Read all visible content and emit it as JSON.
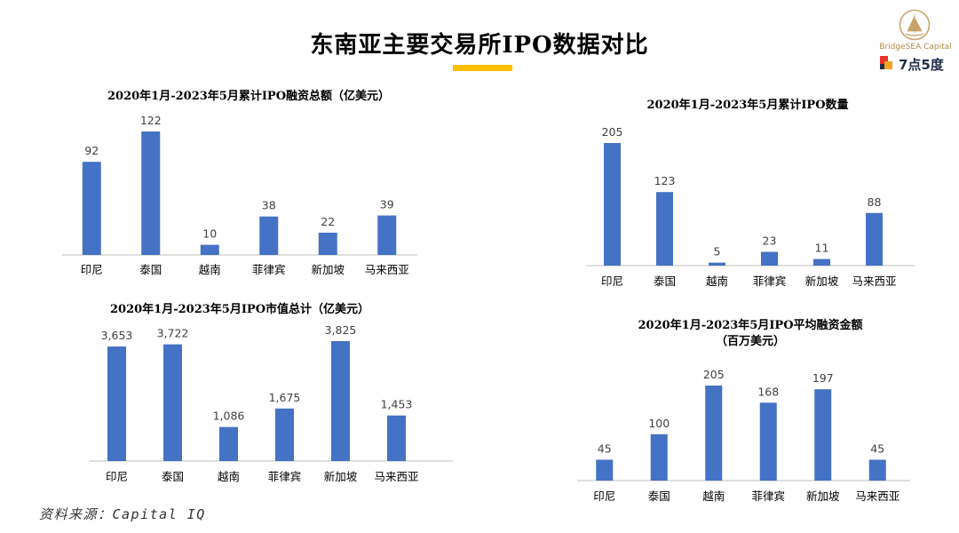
{
  "page": {
    "title": "东南亚主要交易所IPO数据对比",
    "source": "资料来源：Capital IQ",
    "accent_color": "#ffc000",
    "bar_color": "#4472c4"
  },
  "logo": {
    "brand1": "BridgeSEA Capital",
    "brand2": "7点5度"
  },
  "chart_data": [
    {
      "type": "bar",
      "title": "2020年1月-2023年5月累计IPO融资总额（亿美元）",
      "categories": [
        "印尼",
        "泰国",
        "越南",
        "菲律宾",
        "新加坡",
        "马来西亚"
      ],
      "values": [
        92,
        122,
        10,
        38,
        22,
        39
      ],
      "value_labels": [
        "92",
        "122",
        "10",
        "38",
        "22",
        "39"
      ],
      "ylim": [
        0,
        122
      ]
    },
    {
      "type": "bar",
      "title": "2020年1月-2023年5月累计IPO数量",
      "categories": [
        "印尼",
        "泰国",
        "越南",
        "菲律宾",
        "新加坡",
        "马来西亚"
      ],
      "values": [
        205,
        123,
        5,
        23,
        11,
        88
      ],
      "value_labels": [
        "205",
        "123",
        "5",
        "23",
        "11",
        "88"
      ],
      "ylim": [
        0,
        205
      ]
    },
    {
      "type": "bar",
      "title": "2020年1月-2023年5月IPO市值总计（亿美元）",
      "categories": [
        "印尼",
        "泰国",
        "越南",
        "菲律宾",
        "新加坡",
        "马来西亚"
      ],
      "values": [
        3653,
        3722,
        1086,
        1675,
        3825,
        1453
      ],
      "value_labels": [
        "3,653",
        "3,722",
        "1,086",
        "1,675",
        "3,825",
        "1,453"
      ],
      "ylim": [
        0,
        3825
      ]
    },
    {
      "type": "bar",
      "title": [
        "2020年1月-2023年5月IPO平均融资金额",
        "（百万美元）"
      ],
      "categories": [
        "印尼",
        "泰国",
        "越南",
        "菲律宾",
        "新加坡",
        "马来西亚"
      ],
      "values": [
        45,
        100,
        205,
        168,
        197,
        45
      ],
      "value_labels": [
        "45",
        "100",
        "205",
        "168",
        "197",
        "45"
      ],
      "ylim": [
        0,
        205
      ]
    }
  ]
}
